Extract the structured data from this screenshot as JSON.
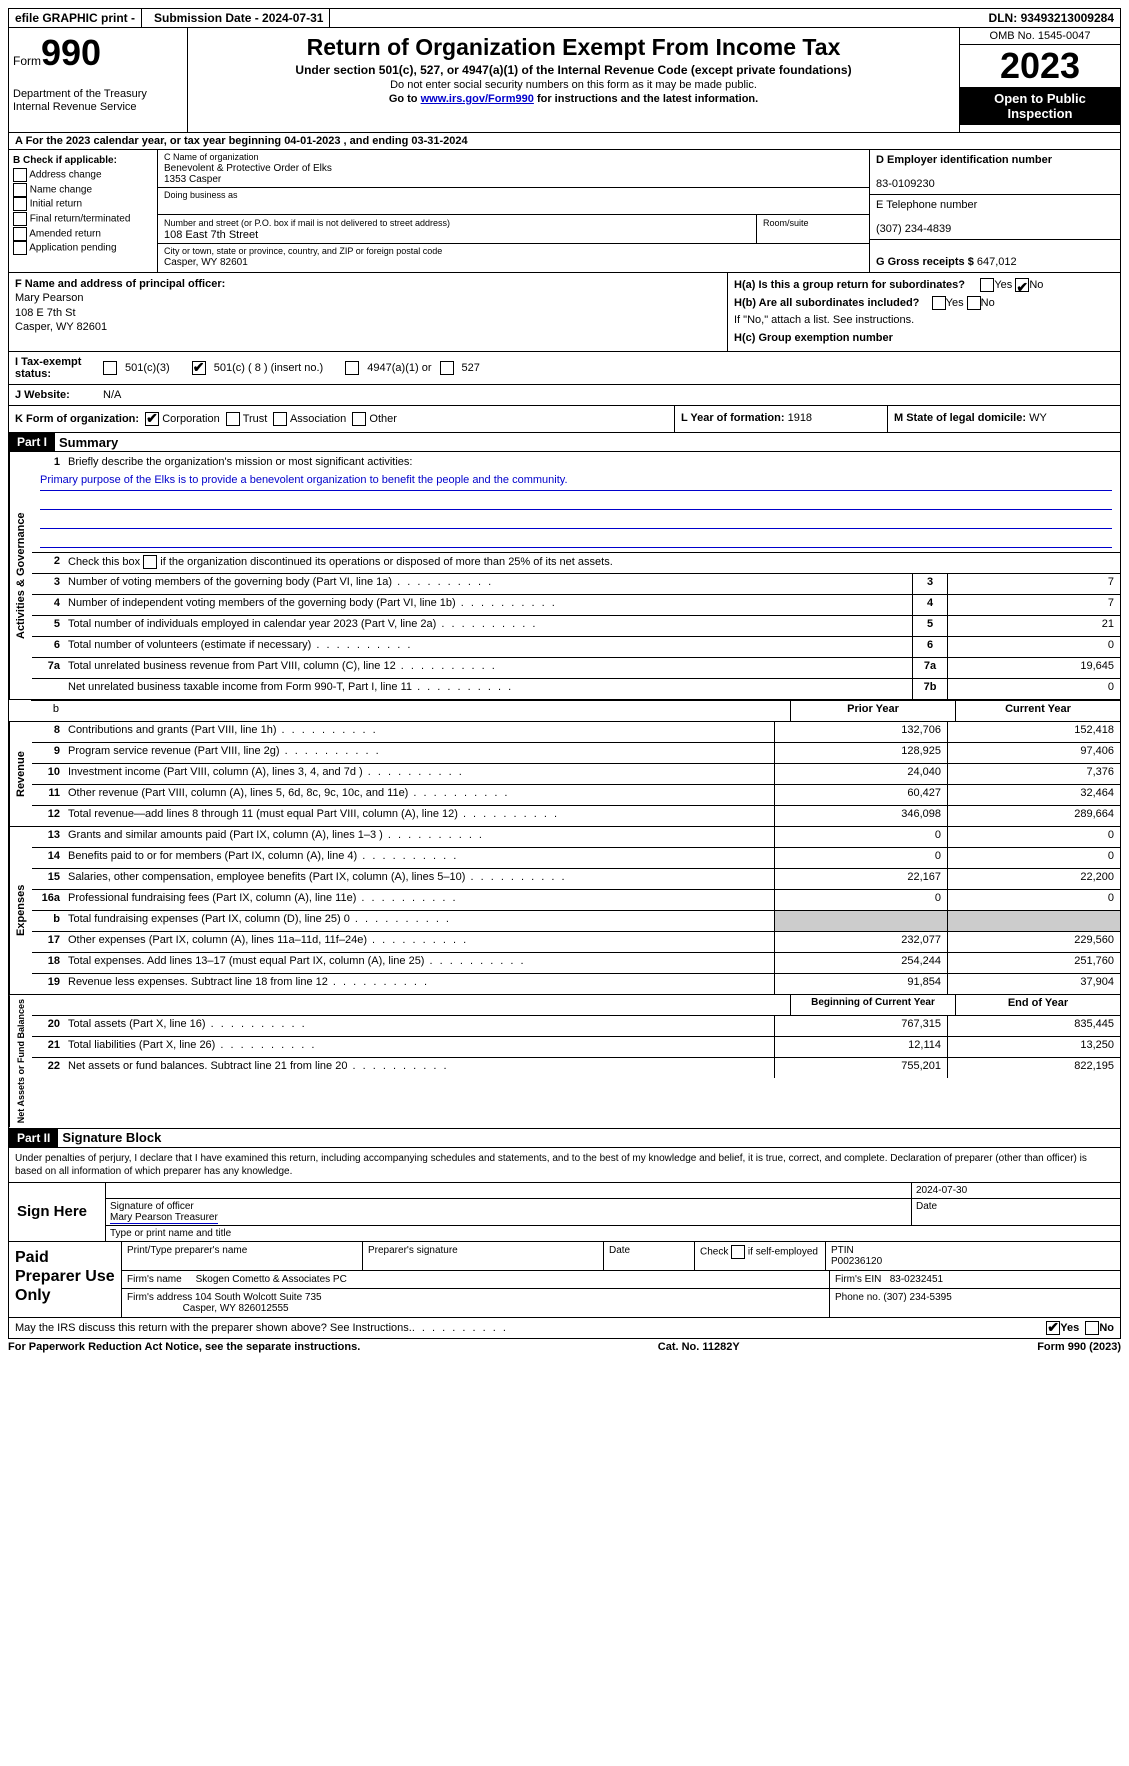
{
  "topbar": {
    "efile": "efile GRAPHIC print -",
    "submission": "Submission Date - 2024-07-31",
    "dln_label": "DLN:",
    "dln": "93493213009284"
  },
  "header": {
    "form_label": "Form",
    "form_number": "990",
    "dept": "Department of the Treasury Internal Revenue Service",
    "title": "Return of Organization Exempt From Income Tax",
    "sub": "Under section 501(c), 527, or 4947(a)(1) of the Internal Revenue Code (except private foundations)",
    "note1": "Do not enter social security numbers on this form as it may be made public.",
    "note2_pre": "Go to ",
    "note2_link": "www.irs.gov/Form990",
    "note2_post": " for instructions and the latest information.",
    "omb": "OMB No. 1545-0047",
    "year": "2023",
    "open": "Open to Public Inspection"
  },
  "row_a": "A For the 2023 calendar year, or tax year beginning 04-01-2023   , and ending 03-31-2024",
  "box_b": {
    "label": "B Check if applicable:",
    "items": [
      "Address change",
      "Name change",
      "Initial return",
      "Final return/terminated",
      "Amended return",
      "Application pending"
    ]
  },
  "box_c": {
    "name_label": "C Name of organization",
    "name1": "Benevolent & Protective Order of Elks",
    "name2": "1353 Casper",
    "dba_label": "Doing business as",
    "addr_label": "Number and street (or P.O. box if mail is not delivered to street address)",
    "addr": "108 East 7th Street",
    "room_label": "Room/suite",
    "city_label": "City or town, state or province, country, and ZIP or foreign postal code",
    "city": "Casper, WY  82601"
  },
  "box_d": {
    "ein_label": "D Employer identification number",
    "ein": "83-0109230",
    "tel_label": "E Telephone number",
    "tel": "(307) 234-4839",
    "gross_label": "G Gross receipts $",
    "gross": "647,012"
  },
  "box_f": {
    "label": "F  Name and address of principal officer:",
    "name": "Mary Pearson",
    "addr1": "108 E 7th St",
    "addr2": "Casper, WY  82601"
  },
  "box_h": {
    "ha_label": "H(a)  Is this a group return for subordinates?",
    "ha_yes": "Yes",
    "ha_no": "No",
    "hb_label": "H(b)  Are all subordinates included?",
    "hb_note": "If \"No,\" attach a list. See instructions.",
    "hc_label": "H(c)  Group exemption number"
  },
  "row_i": {
    "label": "I  Tax-exempt status:",
    "opt1": "501(c)(3)",
    "opt2": "501(c) ( 8 ) (insert no.)",
    "opt3": "4947(a)(1) or",
    "opt4": "527"
  },
  "row_j": {
    "label": "J  Website:",
    "value": "N/A"
  },
  "row_k": {
    "label": "K Form of organization:",
    "opts": [
      "Corporation",
      "Trust",
      "Association",
      "Other"
    ]
  },
  "row_l": {
    "label": "L Year of formation:",
    "value": "1918"
  },
  "row_m": {
    "label": "M State of legal domicile:",
    "value": "WY"
  },
  "part1": {
    "label": "Part I",
    "title": "Summary"
  },
  "summary": {
    "line1_label": "Briefly describe the organization's mission or most significant activities:",
    "line1_text": "Primary purpose of the Elks is to provide a benevolent organization to benefit the people and the community.",
    "line2": "Check this box      if the organization discontinued its operations or disposed of more than 25% of its net assets.",
    "gov": [
      {
        "n": "3",
        "d": "Number of voting members of the governing body (Part VI, line 1a)",
        "b": "3",
        "v": "7"
      },
      {
        "n": "4",
        "d": "Number of independent voting members of the governing body (Part VI, line 1b)",
        "b": "4",
        "v": "7"
      },
      {
        "n": "5",
        "d": "Total number of individuals employed in calendar year 2023 (Part V, line 2a)",
        "b": "5",
        "v": "21"
      },
      {
        "n": "6",
        "d": "Total number of volunteers (estimate if necessary)",
        "b": "6",
        "v": "0"
      },
      {
        "n": "7a",
        "d": "Total unrelated business revenue from Part VIII, column (C), line 12",
        "b": "7a",
        "v": "19,645"
      },
      {
        "n": "",
        "d": "Net unrelated business taxable income from Form 990-T, Part I, line 11",
        "b": "7b",
        "v": "0"
      }
    ],
    "col_prior": "Prior Year",
    "col_current": "Current Year",
    "revenue": [
      {
        "n": "8",
        "d": "Contributions and grants (Part VIII, line 1h)",
        "p": "132,706",
        "c": "152,418"
      },
      {
        "n": "9",
        "d": "Program service revenue (Part VIII, line 2g)",
        "p": "128,925",
        "c": "97,406"
      },
      {
        "n": "10",
        "d": "Investment income (Part VIII, column (A), lines 3, 4, and 7d )",
        "p": "24,040",
        "c": "7,376"
      },
      {
        "n": "11",
        "d": "Other revenue (Part VIII, column (A), lines 5, 6d, 8c, 9c, 10c, and 11e)",
        "p": "60,427",
        "c": "32,464"
      },
      {
        "n": "12",
        "d": "Total revenue—add lines 8 through 11 (must equal Part VIII, column (A), line 12)",
        "p": "346,098",
        "c": "289,664"
      }
    ],
    "expenses": [
      {
        "n": "13",
        "d": "Grants and similar amounts paid (Part IX, column (A), lines 1–3 )",
        "p": "0",
        "c": "0"
      },
      {
        "n": "14",
        "d": "Benefits paid to or for members (Part IX, column (A), line 4)",
        "p": "0",
        "c": "0"
      },
      {
        "n": "15",
        "d": "Salaries, other compensation, employee benefits (Part IX, column (A), lines 5–10)",
        "p": "22,167",
        "c": "22,200"
      },
      {
        "n": "16a",
        "d": "Professional fundraising fees (Part IX, column (A), line 11e)",
        "p": "0",
        "c": "0"
      },
      {
        "n": "b",
        "d": "Total fundraising expenses (Part IX, column (D), line 25) 0",
        "p": "shade",
        "c": "shade"
      },
      {
        "n": "17",
        "d": "Other expenses (Part IX, column (A), lines 11a–11d, 11f–24e)",
        "p": "232,077",
        "c": "229,560"
      },
      {
        "n": "18",
        "d": "Total expenses. Add lines 13–17 (must equal Part IX, column (A), line 25)",
        "p": "254,244",
        "c": "251,760"
      },
      {
        "n": "19",
        "d": "Revenue less expenses. Subtract line 18 from line 12",
        "p": "91,854",
        "c": "37,904"
      }
    ],
    "col_begin": "Beginning of Current Year",
    "col_end": "End of Year",
    "net": [
      {
        "n": "20",
        "d": "Total assets (Part X, line 16)",
        "p": "767,315",
        "c": "835,445"
      },
      {
        "n": "21",
        "d": "Total liabilities (Part X, line 26)",
        "p": "12,114",
        "c": "13,250"
      },
      {
        "n": "22",
        "d": "Net assets or fund balances. Subtract line 21 from line 20",
        "p": "755,201",
        "c": "822,195"
      }
    ]
  },
  "part2": {
    "label": "Part II",
    "title": "Signature Block"
  },
  "sig": {
    "declaration": "Under penalties of perjury, I declare that I have examined this return, including accompanying schedules and statements, and to the best of my knowledge and belief, it is true, correct, and complete. Declaration of preparer (other than officer) is based on all information of which preparer has any knowledge.",
    "sign_here": "Sign Here",
    "date": "2024-07-30",
    "sig_officer": "Signature of officer",
    "officer_name": "Mary Pearson Treasurer",
    "type_name": "Type or print name and title",
    "date_label": "Date"
  },
  "preparer": {
    "label": "Paid Preparer Use Only",
    "h1": "Print/Type preparer's name",
    "h2": "Preparer's signature",
    "h3": "Date",
    "h4_a": "Check",
    "h4_b": "if self-employed",
    "h5": "PTIN",
    "ptin": "P00236120",
    "firm_label": "Firm's name",
    "firm": "Skogen Cometto & Associates PC",
    "firm_ein_label": "Firm's EIN",
    "firm_ein": "83-0232451",
    "addr_label": "Firm's address",
    "addr1": "104 South Wolcott Suite 735",
    "addr2": "Casper, WY  826012555",
    "phone_label": "Phone no.",
    "phone": "(307) 234-5395"
  },
  "footer": {
    "discuss": "May the IRS discuss this return with the preparer shown above? See Instructions.",
    "yes": "Yes",
    "no": "No",
    "paperwork": "For Paperwork Reduction Act Notice, see the separate instructions.",
    "cat": "Cat. No. 11282Y",
    "form": "Form 990 (2023)"
  },
  "vert_labels": {
    "gov": "Activities & Governance",
    "rev": "Revenue",
    "exp": "Expenses",
    "net": "Net Assets or Fund Balances"
  }
}
